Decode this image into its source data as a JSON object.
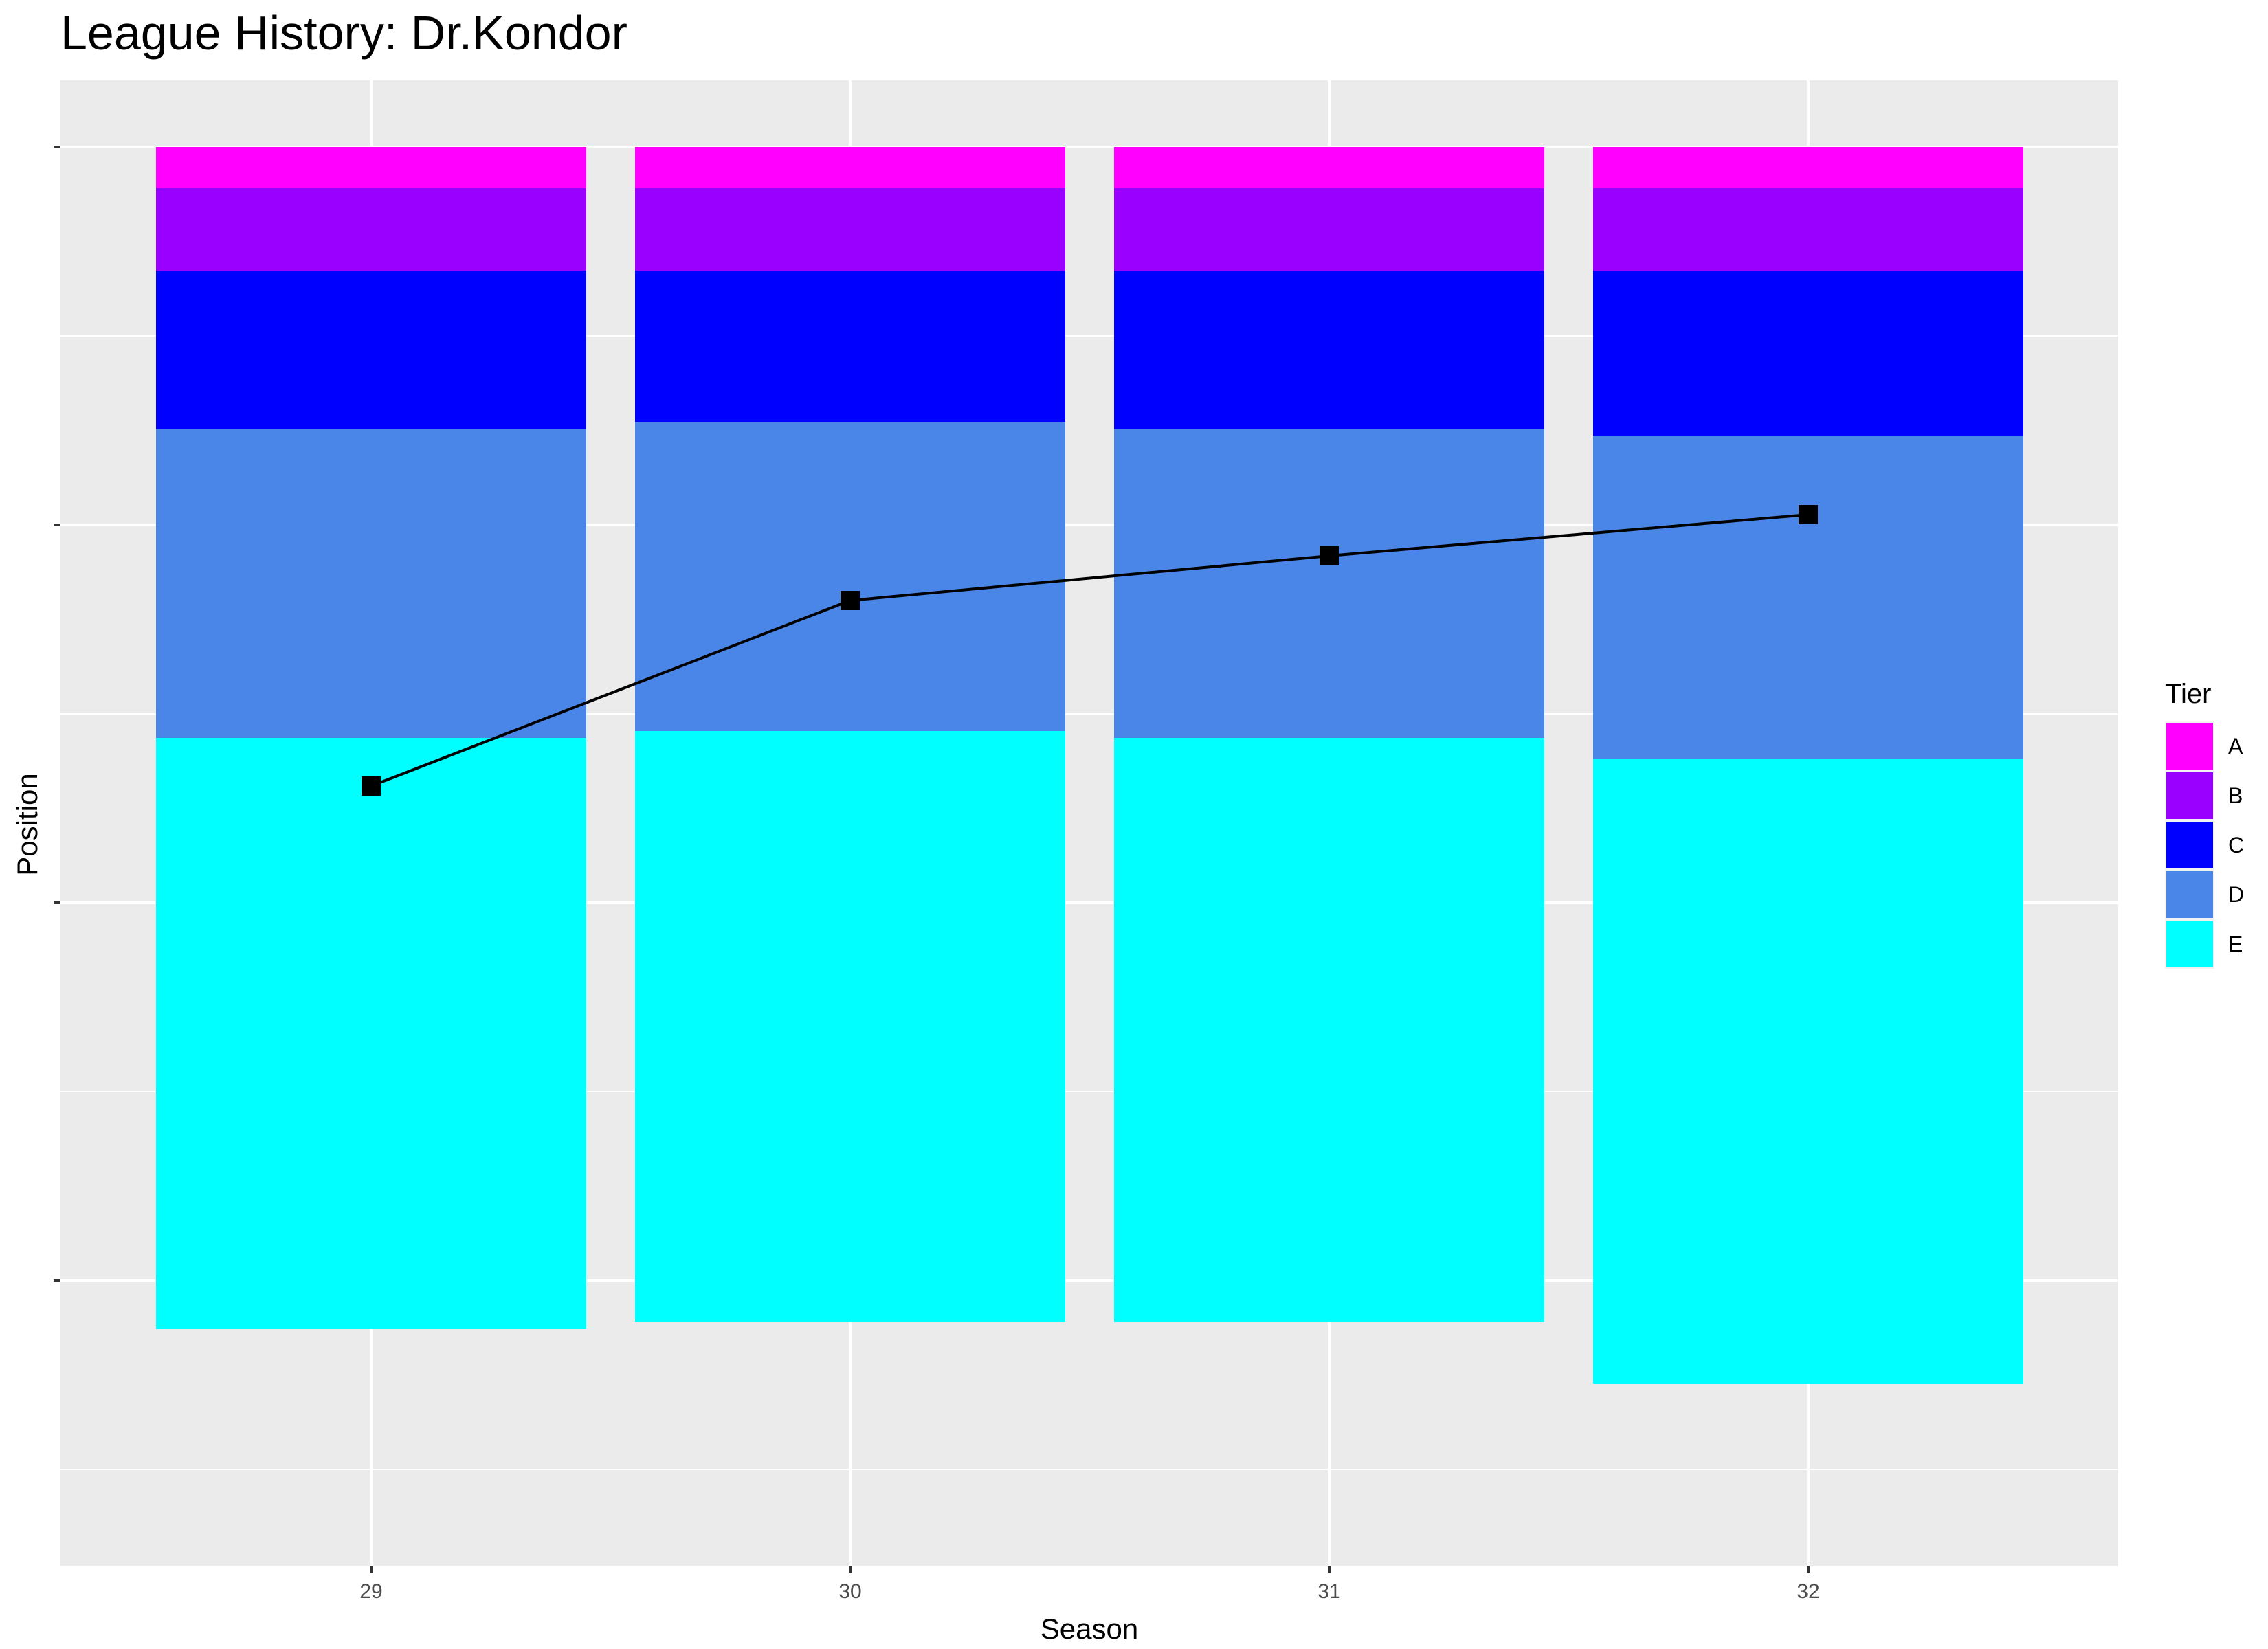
{
  "chart_data": {
    "type": "bar",
    "subtype": "stacked-bar-with-line",
    "title": "League History: Dr.Kondor",
    "xlabel": "Season",
    "ylabel": "Position",
    "y_reversed": true,
    "ylim": [
      0,
      190
    ],
    "y_tick_labels_shown": false,
    "grid": true,
    "legend_position": "right",
    "categories": [
      "29",
      "30",
      "31",
      "32"
    ],
    "tiers": [
      {
        "name": "A",
        "color": "#FF00FF",
        "values": [
          6,
          6,
          6,
          6
        ]
      },
      {
        "name": "B",
        "color": "#9900FF",
        "values": [
          12,
          12,
          12,
          12
        ]
      },
      {
        "name": "C",
        "color": "#0000FF",
        "values": [
          23,
          22,
          23,
          24
        ]
      },
      {
        "name": "D",
        "color": "#4A86E8",
        "values": [
          45,
          45,
          45,
          47
        ]
      },
      {
        "name": "E",
        "color": "#00FFFF",
        "values": [
          86,
          86,
          85,
          91
        ]
      }
    ],
    "position_series": {
      "x": [
        "29",
        "30",
        "31",
        "32"
      ],
      "y": [
        93,
        66,
        59.5,
        53.5
      ],
      "color": "#000000",
      "marker": "square"
    },
    "legend": {
      "title": "Tier",
      "entries": [
        "A",
        "B",
        "C",
        "D",
        "E"
      ]
    }
  }
}
